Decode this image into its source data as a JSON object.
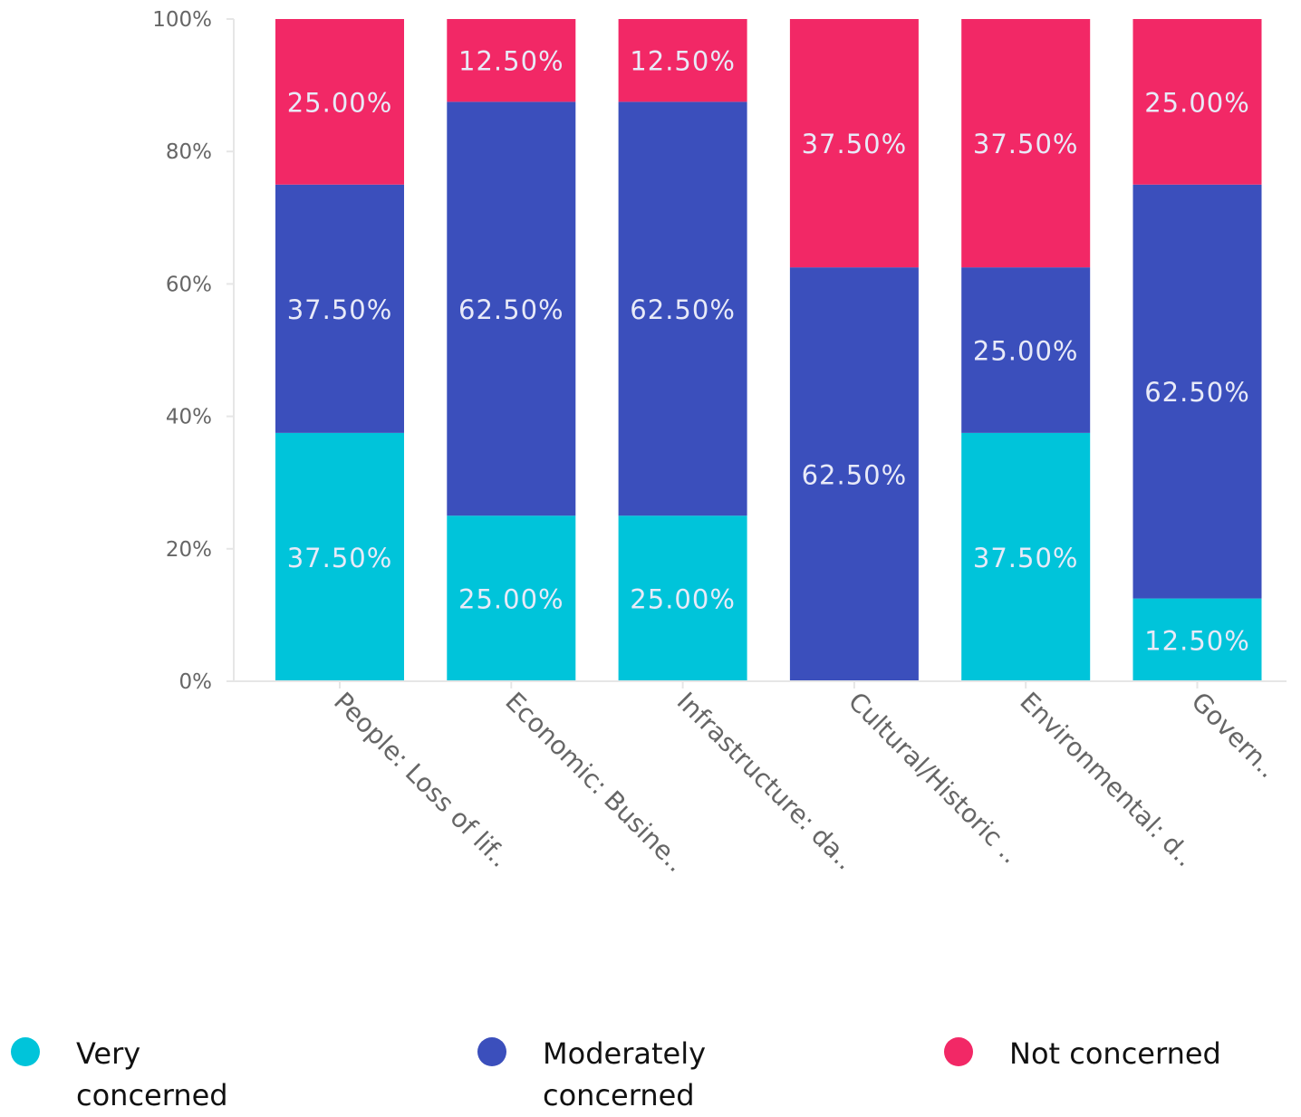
{
  "chart_data": {
    "type": "bar",
    "stacked": true,
    "normalized": true,
    "categories": [
      "People: Loss of lif..",
      "Economic: Busine..",
      "Infrastructure: da..",
      "Cultural/Historic ..",
      "Environmental: d..",
      "Govern.."
    ],
    "series": [
      {
        "name": "Very concerned",
        "color": "#00c4da",
        "values": [
          37.5,
          25.0,
          25.0,
          0.0,
          37.5,
          12.5
        ],
        "labels": [
          "37.50%",
          "25.00%",
          "25.00%",
          "",
          "37.50%",
          "12.50%"
        ]
      },
      {
        "name": "Moderately concerned",
        "color": "#3b4fbc",
        "values": [
          37.5,
          62.5,
          62.5,
          62.5,
          25.0,
          62.5
        ],
        "labels": [
          "37.50%",
          "62.50%",
          "62.50%",
          "62.50%",
          "25.00%",
          "62.50%"
        ]
      },
      {
        "name": "Not concerned",
        "color": "#f22866",
        "values": [
          25.0,
          12.5,
          12.5,
          37.5,
          37.5,
          25.0
        ],
        "labels": [
          "25.00%",
          "12.50%",
          "12.50%",
          "37.50%",
          "37.50%",
          "25.00%"
        ]
      }
    ],
    "ylim": [
      0,
      100
    ],
    "yticks": [
      "0%",
      "20%",
      "40%",
      "60%",
      "80%",
      "100%"
    ],
    "ytick_values": [
      0,
      20,
      40,
      60,
      80,
      100
    ],
    "grid": false,
    "legend_position": "bottom"
  }
}
